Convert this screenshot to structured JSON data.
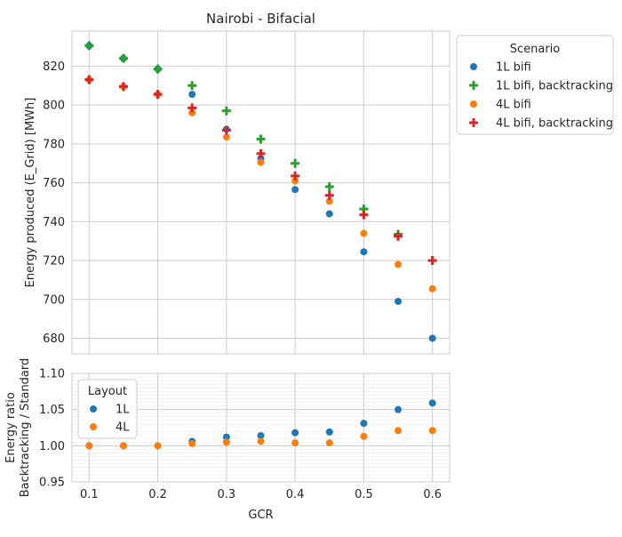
{
  "chart_data": [
    {
      "type": "scatter",
      "title": "Nairobi - Bifacial",
      "xlabel": "",
      "ylabel": "Energy produced (E_Grid) [MWh]",
      "ylim": [
        672,
        838
      ],
      "yticks": [
        680,
        700,
        720,
        740,
        760,
        780,
        800,
        820
      ],
      "grid": true,
      "legend": {
        "title": "Scenario",
        "placement": "outside-top-right"
      },
      "x": [
        0.1,
        0.15,
        0.2,
        0.25,
        0.3,
        0.35,
        0.4,
        0.45,
        0.5,
        0.55,
        0.6
      ],
      "series": [
        {
          "name": "1L bifi",
          "marker": "circle",
          "color": "#1f77b4",
          "values": [
            830.5,
            824.0,
            818.5,
            805.5,
            787.5,
            772.5,
            756.5,
            744.0,
            724.5,
            699.0,
            680.0
          ]
        },
        {
          "name": "1L bifi, backtracking",
          "marker": "plus",
          "color": "#2ca02c",
          "values": [
            830.5,
            824.0,
            818.5,
            810.0,
            797.0,
            782.5,
            770.0,
            758.0,
            746.5,
            733.5,
            720.0
          ]
        },
        {
          "name": "4L bifi",
          "marker": "circle",
          "color": "#ff7f0e",
          "values": [
            813.0,
            809.5,
            805.5,
            796.0,
            783.5,
            770.5,
            761.0,
            750.5,
            734.0,
            718.0,
            705.5
          ]
        },
        {
          "name": "4L bifi, backtracking",
          "marker": "plus",
          "color": "#d62728",
          "values": [
            813.0,
            809.5,
            805.5,
            798.5,
            787.0,
            775.0,
            763.5,
            753.5,
            743.5,
            732.5,
            720.0
          ]
        }
      ]
    },
    {
      "type": "scatter",
      "title": "",
      "xlabel": "GCR",
      "ylabel_lines": [
        "Energy ratio",
        "Backtracking / Standard"
      ],
      "xlim": [
        0.075,
        0.625
      ],
      "xticks": [
        0.1,
        0.2,
        0.3,
        0.4,
        0.5,
        0.6
      ],
      "ylim": [
        0.95,
        1.1
      ],
      "yticks": [
        0.95,
        1.0,
        1.05,
        1.1
      ],
      "grid": true,
      "legend": {
        "title": "Layout",
        "placement": "upper-left"
      },
      "x": [
        0.1,
        0.15,
        0.2,
        0.25,
        0.3,
        0.35,
        0.4,
        0.45,
        0.5,
        0.55,
        0.6
      ],
      "series": [
        {
          "name": "1L",
          "marker": "circle",
          "color": "#1f77b4",
          "values": [
            1.0,
            1.0,
            1.0,
            1.006,
            1.012,
            1.014,
            1.018,
            1.019,
            1.031,
            1.05,
            1.059
          ]
        },
        {
          "name": "4L",
          "marker": "circle",
          "color": "#ff7f0e",
          "values": [
            1.0,
            1.0,
            1.0,
            1.003,
            1.005,
            1.006,
            1.004,
            1.004,
            1.013,
            1.021,
            1.021
          ]
        }
      ]
    }
  ]
}
